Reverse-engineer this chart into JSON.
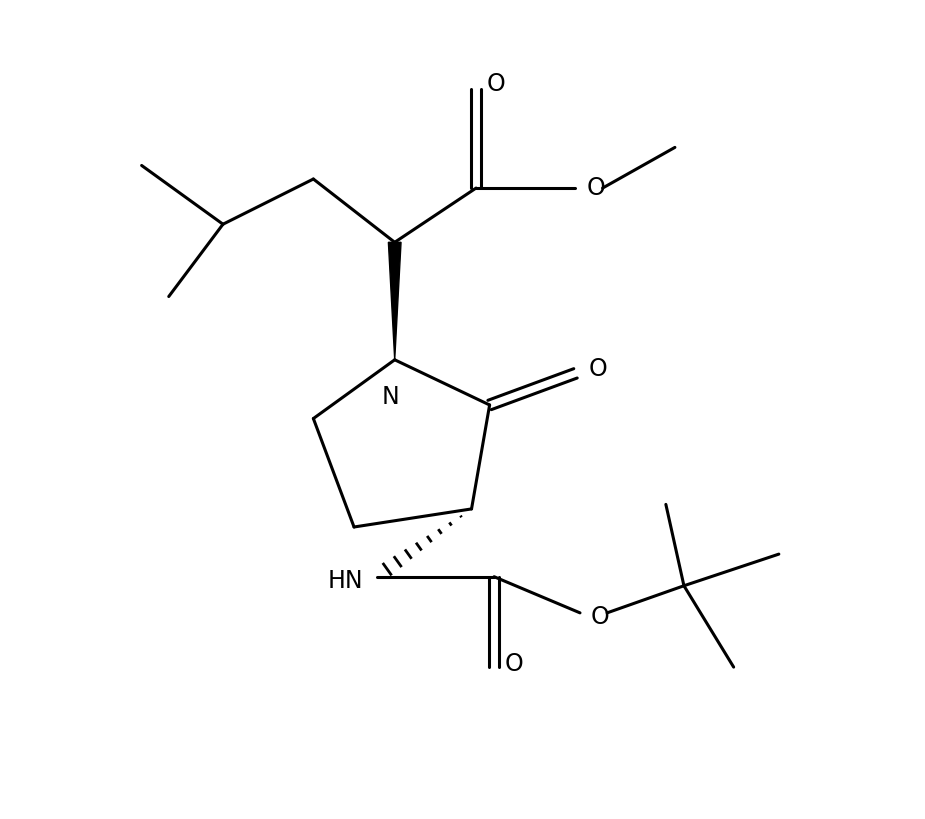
{
  "bg_color": "#ffffff",
  "line_color": "#000000",
  "line_width": 2.2,
  "figsize": [
    9.25,
    8.19
  ],
  "dpi": 100,
  "xlim": [
    0,
    10
  ],
  "ylim": [
    0,
    9
  ]
}
